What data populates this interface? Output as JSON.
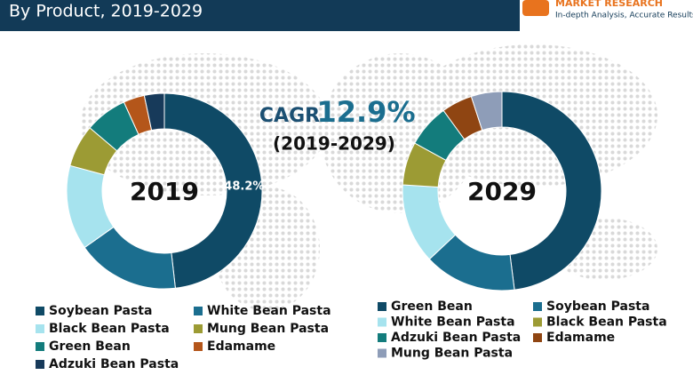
{
  "header": {
    "title": "By Product, 2019-2029"
  },
  "logo": {
    "name": "MARKET RESEARCH",
    "tagline": "In-depth Analysis, Accurate Results"
  },
  "annotation": {
    "label": "CAGR",
    "value": "12.9%",
    "period": "(2019-2029)"
  },
  "chart_data": [
    {
      "type": "pie",
      "title": "2019",
      "categories": [
        "Soybean Pasta",
        "White Bean Pasta",
        "Black Bean Pasta",
        "Mung Bean Pasta",
        "Green Bean",
        "Edamame",
        "Adzuki Bean Pasta"
      ],
      "values": [
        48.2,
        17,
        14,
        7,
        7,
        3.5,
        3.3
      ],
      "value_labels": [
        "48.2%",
        null,
        null,
        null,
        null,
        null,
        null
      ],
      "colors": [
        "#0f4a66",
        "#1b6e8f",
        "#a6e3ee",
        "#9c9b34",
        "#137c7c",
        "#b4561a",
        "#173a5a"
      ]
    },
    {
      "type": "pie",
      "title": "2029",
      "categories": [
        "Green Bean",
        "Soybean Pasta",
        "White Bean Pasta",
        "Black Bean Pasta",
        "Adzuki Bean Pasta",
        "Edamame",
        "Mung Bean Pasta"
      ],
      "values": [
        48,
        15,
        13,
        7,
        7,
        5,
        5
      ],
      "colors": [
        "#0f4a66",
        "#1b6e8f",
        "#a6e3ee",
        "#9c9b34",
        "#137c7c",
        "#8f4512",
        "#8e9db8"
      ]
    }
  ]
}
